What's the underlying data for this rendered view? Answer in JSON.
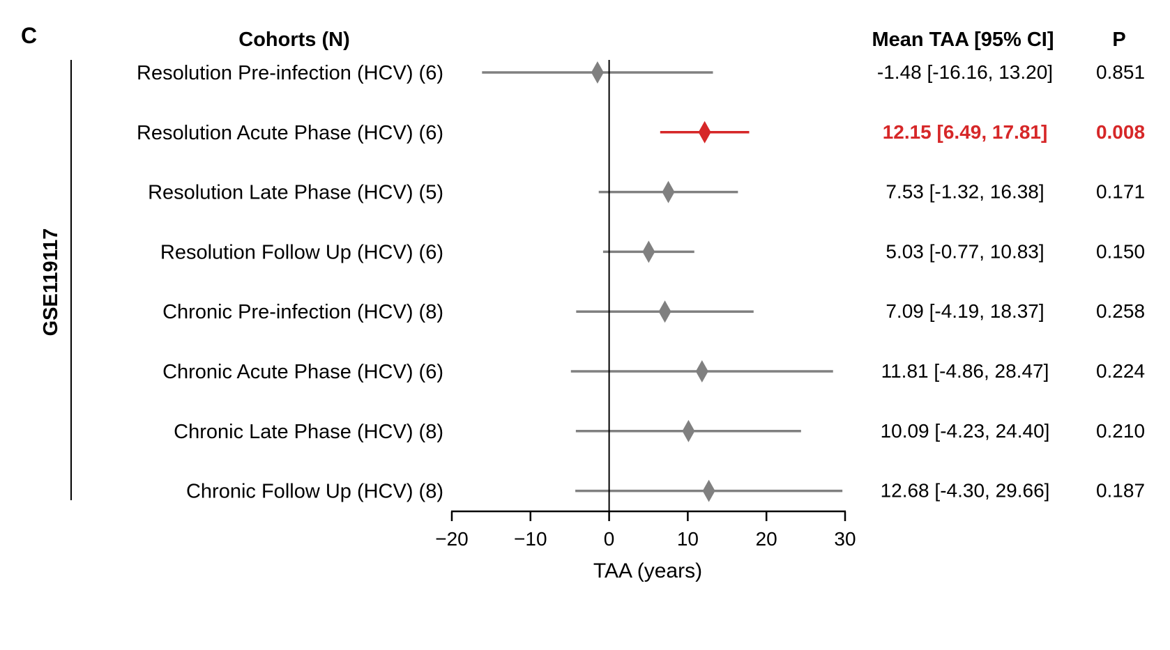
{
  "panel_label": "C",
  "group_label": "GSE119117",
  "headers": {
    "cohorts": "Cohorts (N)",
    "mean": "Mean TAA [95% CI]",
    "p": "P"
  },
  "colors": {
    "default": "#808080",
    "highlight": "#d62728",
    "axis": "#000000"
  },
  "chart_data": {
    "type": "forest",
    "xlabel": "TAA (years)",
    "xlim": [
      -20,
      30
    ],
    "xticks": [
      "−20",
      "−10",
      "0",
      "10",
      "20",
      "30"
    ],
    "xtick_values": [
      -20,
      -10,
      0,
      10,
      20,
      30
    ],
    "reference_line": 0,
    "rows": [
      {
        "label": "Resolution Pre-infection (HCV) (6)",
        "mean": -1.48,
        "lo": -16.16,
        "hi": 13.2,
        "ci_text": "-1.48 [-16.16, 13.20]",
        "p": "0.851",
        "highlight": false
      },
      {
        "label": "Resolution Acute Phase (HCV) (6)",
        "mean": 12.15,
        "lo": 6.49,
        "hi": 17.81,
        "ci_text": "12.15 [6.49, 17.81]",
        "p": "0.008",
        "highlight": true
      },
      {
        "label": "Resolution Late Phase (HCV) (5)",
        "mean": 7.53,
        "lo": -1.32,
        "hi": 16.38,
        "ci_text": "7.53 [-1.32, 16.38]",
        "p": "0.171",
        "highlight": false
      },
      {
        "label": "Resolution Follow Up (HCV) (6)",
        "mean": 5.03,
        "lo": -0.77,
        "hi": 10.83,
        "ci_text": "5.03 [-0.77, 10.83]",
        "p": "0.150",
        "highlight": false
      },
      {
        "label": "Chronic Pre-infection (HCV) (8)",
        "mean": 7.09,
        "lo": -4.19,
        "hi": 18.37,
        "ci_text": "7.09 [-4.19, 18.37]",
        "p": "0.258",
        "highlight": false
      },
      {
        "label": "Chronic Acute Phase (HCV) (6)",
        "mean": 11.81,
        "lo": -4.86,
        "hi": 28.47,
        "ci_text": "11.81 [-4.86, 28.47]",
        "p": "0.224",
        "highlight": false
      },
      {
        "label": "Chronic Late Phase (HCV) (8)",
        "mean": 10.09,
        "lo": -4.23,
        "hi": 24.4,
        "ci_text": "10.09 [-4.23, 24.40]",
        "p": "0.210",
        "highlight": false
      },
      {
        "label": "Chronic Follow Up (HCV) (8)",
        "mean": 12.68,
        "lo": -4.3,
        "hi": 29.66,
        "ci_text": "12.68 [-4.30, 29.66]",
        "p": "0.187",
        "highlight": false
      }
    ]
  }
}
